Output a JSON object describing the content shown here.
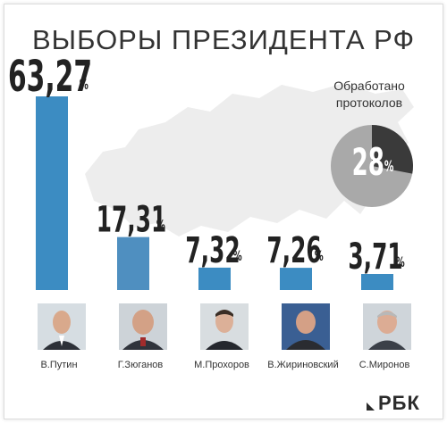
{
  "title": "ВЫБОРЫ ПРЕЗИДЕНТА РФ",
  "progress": {
    "label_line1": "Обработано",
    "label_line2": "протоколов",
    "value_text": "28",
    "unit": "%",
    "fraction": 0.28,
    "processed_color": "#3a3a3a",
    "remaining_color": "#a9a9a9"
  },
  "logo": {
    "text": "РБК"
  },
  "colors": {
    "bar": "#3c8cc2",
    "bar_second": "#4f8fc0",
    "map": "#ededed",
    "value": "#222222"
  },
  "chart_data": {
    "type": "bar",
    "categories": [
      "В.Путин",
      "Г.Зюганов",
      "М.Прохоров",
      "В.Жириновский",
      "С.Миронов"
    ],
    "values": [
      63.27,
      17.31,
      7.32,
      7.26,
      3.71
    ],
    "value_labels": [
      "63,27",
      "17,31",
      "7,32",
      "7,26",
      "3,71"
    ],
    "unit": "%",
    "title": "ВЫБОРЫ ПРЕЗИДЕНТА РФ",
    "xlabel": "",
    "ylabel": "",
    "ylim": [
      0,
      63.27
    ],
    "grid": false,
    "legend": "none"
  }
}
